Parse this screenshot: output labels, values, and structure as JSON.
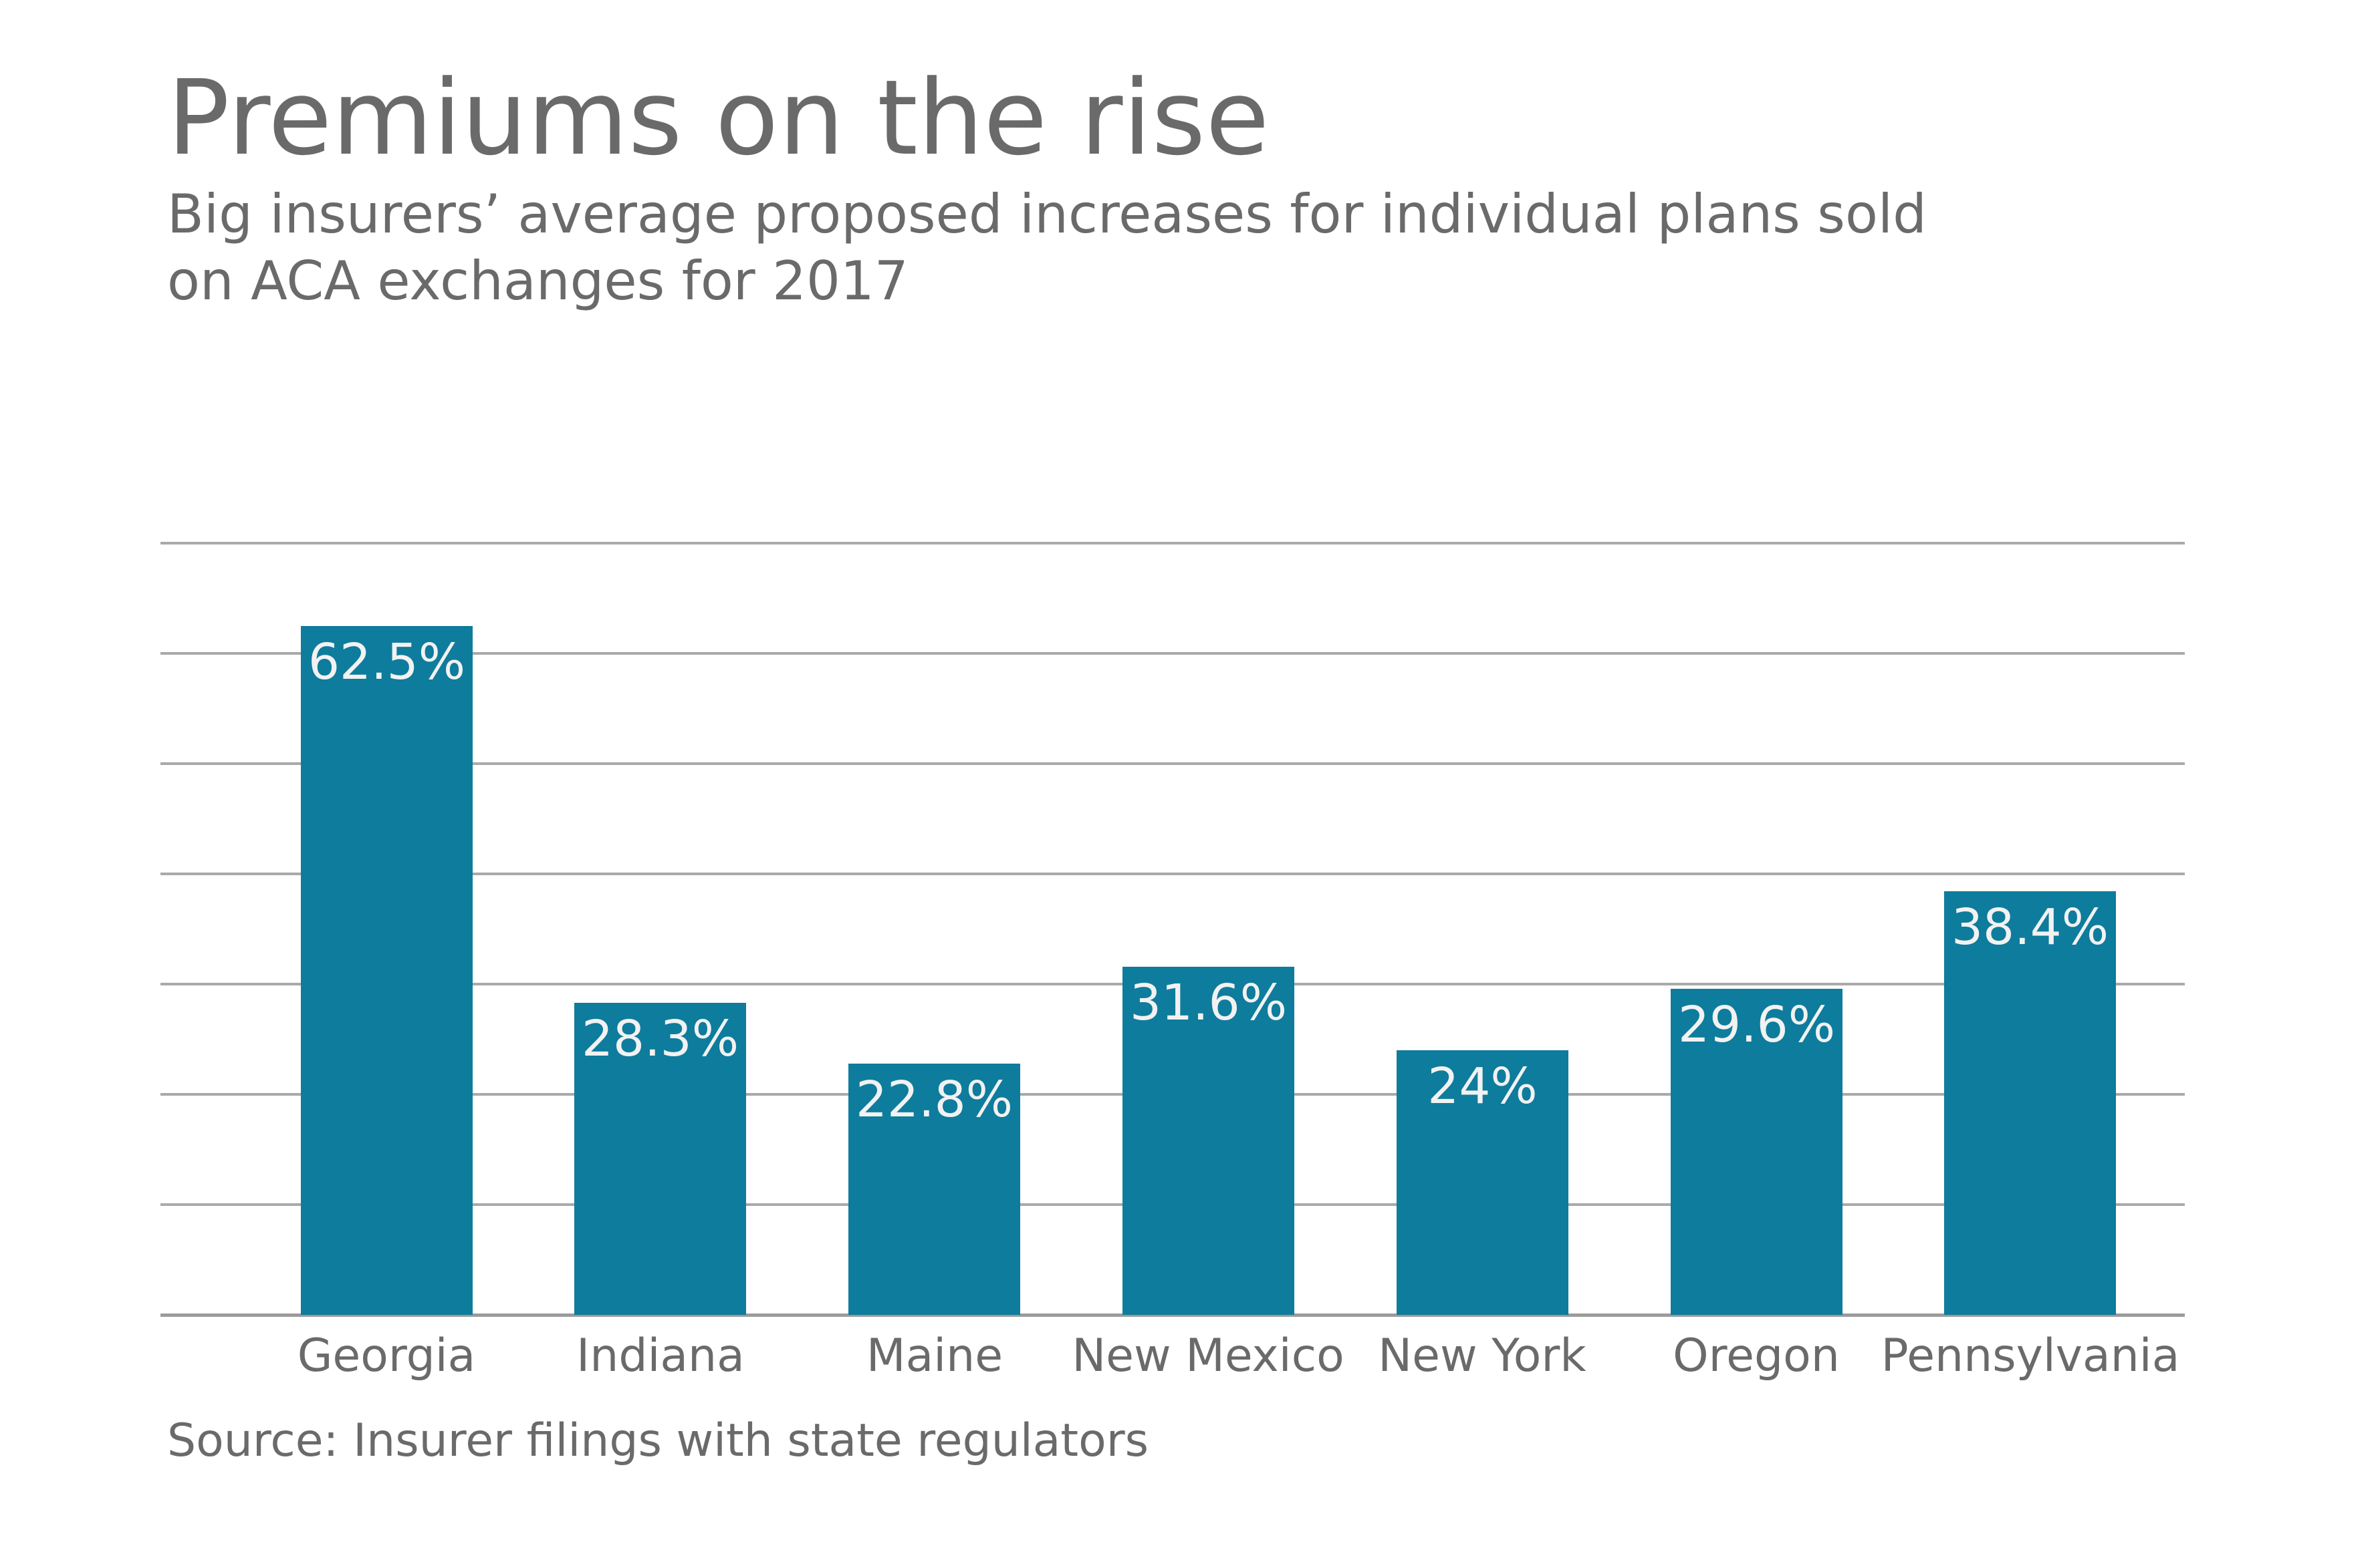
{
  "header": {
    "title": "Premiums on the rise",
    "subtitle_lines": [
      "Big insurers’ average proposed increases for individual plans sold",
      "on ACA exchanges for 2017"
    ]
  },
  "source": "Source: Insurer filings with state regulators",
  "chart_data": {
    "type": "bar",
    "title": "Premiums on the rise",
    "subtitle": "Big insurers’ average proposed increases for individual plans sold on ACA exchanges for 2017",
    "categories": [
      "Georgia",
      "Indiana",
      "Maine",
      "New Mexico",
      "New York",
      "Oregon",
      "Pennsylvania"
    ],
    "values": [
      62.5,
      28.3,
      22.8,
      31.6,
      24,
      29.6,
      38.4
    ],
    "value_labels": [
      "62.5%",
      "28.3%",
      "22.8%",
      "31.6%",
      "24%",
      "29.6%",
      "38.4%"
    ],
    "xlabel": "",
    "ylabel": "",
    "ylim": [
      0,
      70
    ],
    "grid_step": 10,
    "grid": "horizontal",
    "y_tick_labels_visible": false,
    "legend": "none",
    "colors": {
      "bar": "#0e7c9c",
      "value_label": "#f2f2f2",
      "text": "#6a6a6a",
      "gridline": "#a9a9a9",
      "axis_line": "#9b9b9b",
      "background": "#ffffff"
    }
  }
}
